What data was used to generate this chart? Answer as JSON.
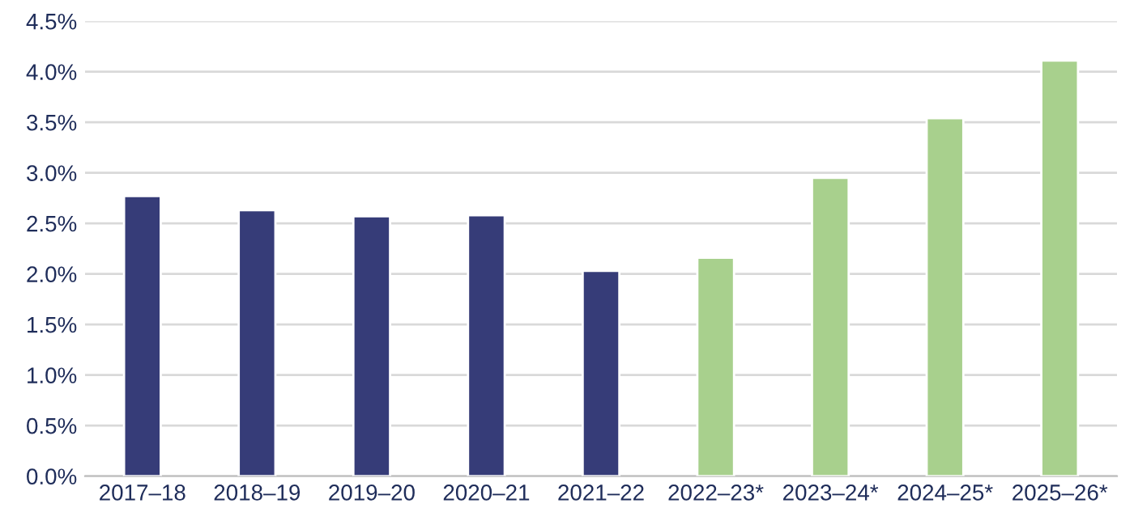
{
  "chart_data": {
    "type": "bar",
    "categories": [
      "2017–18",
      "2018–19",
      "2019–20",
      "2020–21",
      "2021–22",
      "2022–23*",
      "2023–24*",
      "2024–25*",
      "2025–26*"
    ],
    "values": [
      2.77,
      2.63,
      2.57,
      2.58,
      2.03,
      2.16,
      2.95,
      3.54,
      4.11
    ],
    "colors": [
      "#363c78",
      "#363c78",
      "#363c78",
      "#363c78",
      "#363c78",
      "#a8d08d",
      "#a8d08d",
      "#a8d08d",
      "#a8d08d"
    ],
    "ylim": [
      0,
      4.5
    ],
    "yticks": [
      {
        "value": 0,
        "label": "0.0%"
      },
      {
        "value": 0.5,
        "label": "0.5%"
      },
      {
        "value": 1,
        "label": "1.0%"
      },
      {
        "value": 1.5,
        "label": "1.5%"
      },
      {
        "value": 2,
        "label": "2.0%"
      },
      {
        "value": 2.5,
        "label": "2.5%"
      },
      {
        "value": 3,
        "label": "3.0%"
      },
      {
        "value": 3.5,
        "label": "3.5%"
      },
      {
        "value": 4,
        "label": "4.0%"
      },
      {
        "value": 4.5,
        "label": "4.5%"
      }
    ],
    "grid": "y",
    "legend": false
  }
}
